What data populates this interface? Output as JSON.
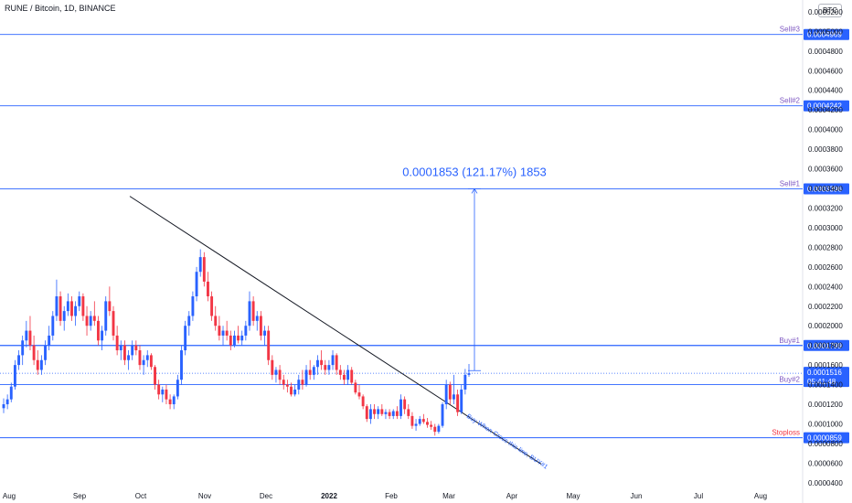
{
  "header": {
    "title": "RUNE / Bitcoin, 1D, BINANCE",
    "currency_badge": "BTC"
  },
  "chart_data": {
    "type": "candlestick",
    "title": "RUNE / Bitcoin, 1D, BINANCE",
    "ylim": [
      3.8e-05,
      0.000519
    ],
    "y_ticks": [
      "0.0000400",
      "0.0000600",
      "0.0000800",
      "0.0001000",
      "0.0001200",
      "0.0001400",
      "0.0001600",
      "0.0001800",
      "0.0002000",
      "0.0002200",
      "0.0002400",
      "0.0002600",
      "0.0002800",
      "0.0003000",
      "0.0003200",
      "0.0003400",
      "0.0003600",
      "0.0003800",
      "0.0004000",
      "0.0004200",
      "0.0004400",
      "0.0004600",
      "0.0004800",
      "0.0005000",
      "0.0005200"
    ],
    "x_labels": [
      "Aug",
      "Sep",
      "Oct",
      "Nov",
      "Dec",
      "2022",
      "Feb",
      "Mar",
      "Apr",
      "May",
      "Jun",
      "Jul",
      "Aug"
    ],
    "colors": {
      "up": "#2962ff",
      "down": "#f23645",
      "level": "#2962ff",
      "trendline": "#131722",
      "stoploss": "#f23645",
      "sell_label": "#7e57c2"
    },
    "levels": [
      {
        "name": "Sell#3",
        "value": "0.0004969"
      },
      {
        "name": "Sell#2",
        "value": "0.0004242"
      },
      {
        "name": "Sell#1",
        "value": "0.0003396"
      },
      {
        "name": "Buy#1",
        "value": "0.0001799"
      },
      {
        "name": "Buy#2",
        "value": "0.0001400"
      },
      {
        "name": "Stoploss",
        "value": "0.0000859"
      }
    ],
    "last_price": {
      "value": "0.0001516",
      "countdown": "05:41:48"
    },
    "measure": {
      "label": "0.0001853 (121.17%) 1853",
      "from": 0.0001543,
      "to": 0.0003396
    },
    "trendline": {
      "start": [
        "Sep 21",
        0.000332
      ],
      "end": [
        "Apr 05",
        5.9e-05
      ]
    },
    "trendline_annotation": "Buy When Cross this line, BUY#1",
    "candles": [
      [
        0.000116,
        0.000126,
        0.000111,
        0.00012
      ],
      [
        0.00012,
        0.00013,
        0.000115,
        0.000125
      ],
      [
        0.000125,
        0.000142,
        0.000122,
        0.000138
      ],
      [
        0.000138,
        0.000165,
        0.000135,
        0.00016
      ],
      [
        0.00016,
        0.000175,
        0.000155,
        0.00017
      ],
      [
        0.00017,
        0.00019,
        0.00016,
        0.000185
      ],
      [
        0.000185,
        0.000205,
        0.000178,
        0.000195
      ],
      [
        0.000195,
        0.00021,
        0.000175,
        0.00018
      ],
      [
        0.00018,
        0.00019,
        0.00016,
        0.000165
      ],
      [
        0.000165,
        0.000175,
        0.00015,
        0.000155
      ],
      [
        0.000155,
        0.00017,
        0.00015,
        0.000165
      ],
      [
        0.000165,
        0.000185,
        0.00016,
        0.00018
      ],
      [
        0.00018,
        0.0002,
        0.000175,
        0.00019
      ],
      [
        0.00019,
        0.000215,
        0.000185,
        0.00021
      ],
      [
        0.00021,
        0.000247,
        0.000205,
        0.00023
      ],
      [
        0.00023,
        0.000235,
        0.0002,
        0.000205
      ],
      [
        0.000205,
        0.00022,
        0.000195,
        0.000215
      ],
      [
        0.000215,
        0.000233,
        0.00021,
        0.000225
      ],
      [
        0.000225,
        0.00023,
        0.000205,
        0.00021
      ],
      [
        0.00021,
        0.000225,
        0.0002,
        0.00022
      ],
      [
        0.00022,
        0.000235,
        0.000215,
        0.00023
      ],
      [
        0.00023,
        0.000233,
        0.000205,
        0.00021
      ],
      [
        0.00021,
        0.00022,
        0.00019,
        0.0002
      ],
      [
        0.0002,
        0.000215,
        0.000195,
        0.00021
      ],
      [
        0.00021,
        0.000225,
        0.0002,
        0.000205
      ],
      [
        0.000205,
        0.00021,
        0.00018,
        0.000185
      ],
      [
        0.000185,
        0.0002,
        0.000175,
        0.000195
      ],
      [
        0.000195,
        0.00023,
        0.00019,
        0.000225
      ],
      [
        0.000225,
        0.00024,
        0.00021,
        0.000215
      ],
      [
        0.000215,
        0.00022,
        0.000185,
        0.00019
      ],
      [
        0.00019,
        0.0002,
        0.00017,
        0.000175
      ],
      [
        0.000175,
        0.000185,
        0.000165,
        0.00018
      ],
      [
        0.00018,
        0.000185,
        0.00016,
        0.000165
      ],
      [
        0.000165,
        0.000175,
        0.000155,
        0.00017
      ],
      [
        0.00017,
        0.000185,
        0.000165,
        0.00018
      ],
      [
        0.00018,
        0.000185,
        0.00017,
        0.000175
      ],
      [
        0.000175,
        0.00018,
        0.000155,
        0.00016
      ],
      [
        0.00016,
        0.00017,
        0.00015,
        0.000165
      ],
      [
        0.000165,
        0.000175,
        0.000158,
        0.00017
      ],
      [
        0.00017,
        0.000172,
        0.000155,
        0.000158
      ],
      [
        0.000158,
        0.00016,
        0.000135,
        0.00014
      ],
      [
        0.00014,
        0.000145,
        0.000125,
        0.00013
      ],
      [
        0.00013,
        0.000138,
        0.000122,
        0.000135
      ],
      [
        0.000135,
        0.00014,
        0.00012,
        0.000125
      ],
      [
        0.000125,
        0.00013,
        0.000115,
        0.00012
      ],
      [
        0.00012,
        0.00013,
        0.000115,
        0.000128
      ],
      [
        0.000128,
        0.00015,
        0.000125,
        0.000145
      ],
      [
        0.000145,
        0.00018,
        0.00014,
        0.000175
      ],
      [
        0.000175,
        0.000205,
        0.00017,
        0.0002
      ],
      [
        0.0002,
        0.000215,
        0.00019,
        0.00021
      ],
      [
        0.00021,
        0.000235,
        0.000205,
        0.00023
      ],
      [
        0.00023,
        0.00026,
        0.000225,
        0.000255
      ],
      [
        0.000255,
        0.000278,
        0.00025,
        0.00027
      ],
      [
        0.00027,
        0.000275,
        0.00024,
        0.000245
      ],
      [
        0.000245,
        0.000255,
        0.000225,
        0.00023
      ],
      [
        0.00023,
        0.000235,
        0.000205,
        0.00021
      ],
      [
        0.00021,
        0.00022,
        0.000195,
        0.0002
      ],
      [
        0.0002,
        0.00021,
        0.000185,
        0.00019
      ],
      [
        0.00019,
        0.0002,
        0.00018,
        0.000195
      ],
      [
        0.000195,
        0.000205,
        0.000185,
        0.00019
      ],
      [
        0.00019,
        0.000195,
        0.000175,
        0.00018
      ],
      [
        0.00018,
        0.000195,
        0.000178,
        0.00019
      ],
      [
        0.00019,
        0.0002,
        0.000182,
        0.000185
      ],
      [
        0.000185,
        0.000195,
        0.00018,
        0.00019
      ],
      [
        0.00019,
        0.000205,
        0.000185,
        0.0002
      ],
      [
        0.0002,
        0.000235,
        0.000195,
        0.000225
      ],
      [
        0.000225,
        0.00023,
        0.0002,
        0.000205
      ],
      [
        0.000205,
        0.000215,
        0.000195,
        0.00021
      ],
      [
        0.00021,
        0.000215,
        0.000185,
        0.00019
      ],
      [
        0.00019,
        0.0002,
        0.00018,
        0.000195
      ],
      [
        0.000195,
        0.0002,
        0.00016,
        0.000165
      ],
      [
        0.000165,
        0.00017,
        0.000145,
        0.00015
      ],
      [
        0.00015,
        0.000158,
        0.000142,
        0.000155
      ],
      [
        0.000155,
        0.00016,
        0.00014,
        0.000145
      ],
      [
        0.000145,
        0.00015,
        0.000135,
        0.00014
      ],
      [
        0.00014,
        0.000145,
        0.000132,
        0.000138
      ],
      [
        0.000138,
        0.000142,
        0.000128,
        0.00013
      ],
      [
        0.00013,
        0.00014,
        0.000128,
        0.000135
      ],
      [
        0.000135,
        0.00015,
        0.00013,
        0.000145
      ],
      [
        0.000145,
        0.000155,
        0.000135,
        0.00014
      ],
      [
        0.00014,
        0.00016,
        0.000138,
        0.000155
      ],
      [
        0.000155,
        0.000165,
        0.000145,
        0.00015
      ],
      [
        0.00015,
        0.00016,
        0.000145,
        0.000158
      ],
      [
        0.000158,
        0.00017,
        0.00015,
        0.000165
      ],
      [
        0.000165,
        0.000175,
        0.000155,
        0.00016
      ],
      [
        0.00016,
        0.000165,
        0.00015,
        0.000155
      ],
      [
        0.000155,
        0.000165,
        0.00015,
        0.00016
      ],
      [
        0.00016,
        0.000175,
        0.000155,
        0.00017
      ],
      [
        0.00017,
        0.000172,
        0.00015,
        0.000155
      ],
      [
        0.000155,
        0.00016,
        0.000145,
        0.00015
      ],
      [
        0.00015,
        0.000155,
        0.00014,
        0.000145
      ],
      [
        0.000145,
        0.00016,
        0.00014,
        0.000155
      ],
      [
        0.000155,
        0.000158,
        0.00014,
        0.000142
      ],
      [
        0.000142,
        0.000145,
        0.00013,
        0.000132
      ],
      [
        0.000132,
        0.00014,
        0.000125,
        0.000128
      ],
      [
        0.000128,
        0.00013,
        0.000115,
        0.000118
      ],
      [
        0.000118,
        0.00012,
        0.000102,
        0.000105
      ],
      [
        0.000105,
        0.00012,
        0.0001,
        0.000115
      ],
      [
        0.000115,
        0.00012,
        0.000105,
        0.00011
      ],
      [
        0.00011,
        0.000118,
        0.000105,
        0.000115
      ],
      [
        0.000115,
        0.00012,
        0.000108,
        0.00011
      ],
      [
        0.00011,
        0.000115,
        0.000105,
        0.000112
      ],
      [
        0.000112,
        0.000115,
        0.000105,
        0.000108
      ],
      [
        0.000108,
        0.000115,
        0.000105,
        0.000113
      ],
      [
        0.000113,
        0.000118,
        0.000105,
        0.000108
      ],
      [
        0.000108,
        0.00013,
        0.000105,
        0.000125
      ],
      [
        0.000125,
        0.000128,
        0.00011,
        0.000115
      ],
      [
        0.000115,
        0.00012,
        0.000105,
        0.000108
      ],
      [
        0.000108,
        0.000112,
        9.5e-05,
        9.8e-05
      ],
      [
        9.8e-05,
        0.000105,
        9.3e-05,
        0.0001
      ],
      [
        0.0001,
        0.000108,
        9.8e-05,
        0.000105
      ],
      [
        0.000105,
        0.00011,
        0.0001,
        0.000102
      ],
      [
        0.000102,
        0.000106,
        9.6e-05,
        9.9e-05
      ],
      [
        9.9e-05,
        0.000103,
        9.4e-05,
        9.7e-05
      ],
      [
        9.7e-05,
        0.0001,
        8.8e-05,
        9.2e-05
      ],
      [
        9.2e-05,
        0.0001,
        9e-05,
        9.8e-05
      ],
      [
        9.8e-05,
        0.000122,
        9.6e-05,
        0.00012
      ],
      [
        0.00012,
        0.000145,
        0.000115,
        0.00014
      ],
      [
        0.00014,
        0.000143,
        0.00012,
        0.000125
      ],
      [
        0.000125,
        0.00015,
        0.00012,
        0.00013
      ],
      [
        0.00013,
        0.000135,
        0.000108,
        0.000112
      ],
      [
        0.000112,
        0.00014,
        0.00011,
        0.000135
      ],
      [
        0.000135,
        0.000156,
        0.00013,
        0.00015
      ],
      [
        0.00015,
        0.000161,
        0.000148,
        0.0001516
      ]
    ]
  }
}
